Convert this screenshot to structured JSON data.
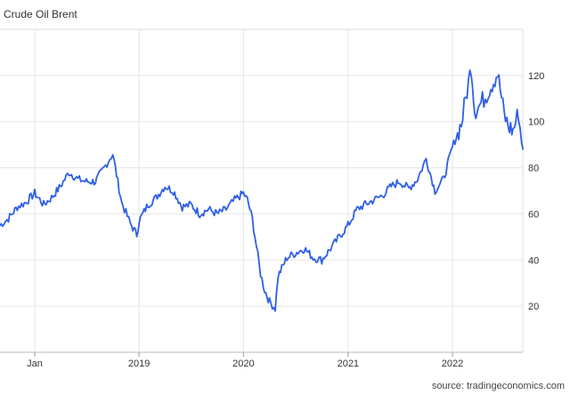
{
  "page": {
    "title": "Crude Oil Brent",
    "source": "source: tradingeconomics.com"
  },
  "chart_data": {
    "type": "line",
    "title": "Crude Oil Brent",
    "xlabel": "",
    "ylabel": "",
    "ylim": [
      0,
      140
    ],
    "y_ticks": [
      20,
      40,
      60,
      80,
      100,
      120
    ],
    "x_ticks": [
      {
        "label": "Jan",
        "x": "2018-01-01"
      },
      {
        "label": "2019",
        "x": "2019-01-01"
      },
      {
        "label": "2020",
        "x": "2020-01-01"
      },
      {
        "label": "2021",
        "x": "2021-01-01"
      },
      {
        "label": "2022",
        "x": "2022-01-01"
      }
    ],
    "grid": true,
    "line_color": "#2f5fe6",
    "series": [
      {
        "x": [
          "2017-09-01",
          "2017-10-01",
          "2017-11-01",
          "2017-12-01",
          "2018-01-01",
          "2018-02-01",
          "2018-03-01",
          "2018-04-01",
          "2018-05-01",
          "2018-06-01",
          "2018-07-01",
          "2018-08-01",
          "2018-09-01",
          "2018-10-01",
          "2018-11-01",
          "2018-12-01",
          "2018-12-24",
          "2019-01-01",
          "2019-02-01",
          "2019-03-01",
          "2019-04-01",
          "2019-05-01",
          "2019-06-01",
          "2019-07-01",
          "2019-08-01",
          "2019-09-01",
          "2019-10-01",
          "2019-11-01",
          "2019-12-01",
          "2020-01-01",
          "2020-01-15",
          "2020-02-01",
          "2020-03-01",
          "2020-03-15",
          "2020-04-01",
          "2020-04-21",
          "2020-05-01",
          "2020-06-01",
          "2020-07-01",
          "2020-08-01",
          "2020-09-01",
          "2020-10-01",
          "2020-11-01",
          "2020-12-01",
          "2021-01-01",
          "2021-02-01",
          "2021-03-01",
          "2021-04-01",
          "2021-05-01",
          "2021-06-01",
          "2021-07-01",
          "2021-08-01",
          "2021-09-01",
          "2021-10-01",
          "2021-11-01",
          "2021-12-01",
          "2022-01-01",
          "2022-02-01",
          "2022-03-08",
          "2022-03-20",
          "2022-04-01",
          "2022-05-01",
          "2022-06-08",
          "2022-07-01",
          "2022-07-15",
          "2022-08-01",
          "2022-08-20",
          "2022-08-31",
          "2022-09-08"
        ],
        "y": [
          55,
          58,
          63,
          65,
          69,
          64,
          67,
          72,
          78,
          75,
          74,
          74,
          80,
          86,
          65,
          56,
          51,
          57,
          64,
          67,
          72,
          70,
          63,
          64,
          60,
          62,
          60,
          62,
          66,
          69,
          66,
          58,
          34,
          27,
          22,
          19,
          33,
          41,
          43,
          45,
          41,
          40,
          45,
          50,
          55,
          62,
          64,
          66,
          68,
          72,
          74,
          71,
          75,
          84,
          70,
          75,
          89,
          99,
          124,
          105,
          106,
          112,
          121,
          103,
          98,
          96,
          104,
          91,
          88
        ]
      }
    ]
  }
}
